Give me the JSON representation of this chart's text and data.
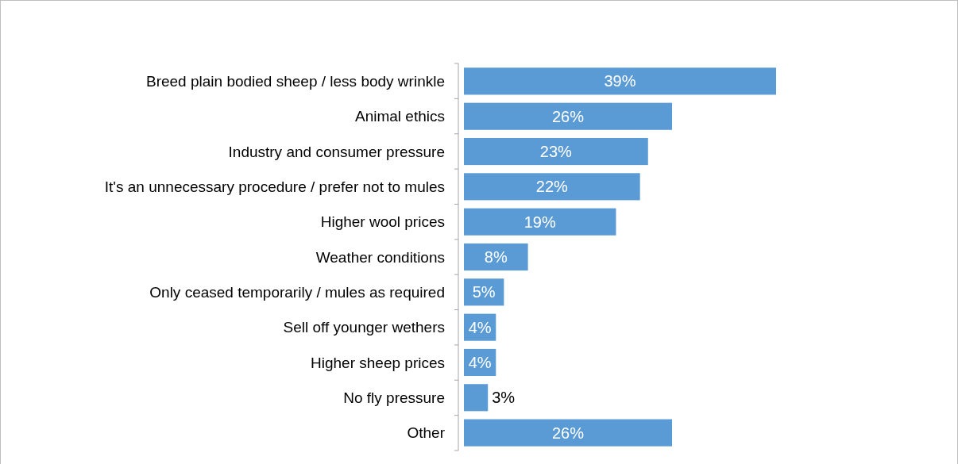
{
  "chart_data": {
    "type": "bar",
    "orientation": "horizontal",
    "categories": [
      "Breed plain bodied sheep / less body wrinkle",
      "Animal ethics",
      "Industry and consumer pressure",
      "It's an unnecessary procedure / prefer not to mules",
      "Higher wool prices",
      "Weather conditions",
      "Only ceased temporarily / mules as required",
      "Sell off younger wethers",
      "Higher sheep prices",
      "No fly pressure",
      "Other"
    ],
    "values": [
      39,
      26,
      23,
      22,
      19,
      8,
      5,
      4,
      4,
      3,
      26
    ],
    "value_labels": [
      "39%",
      "26%",
      "23%",
      "22%",
      "19%",
      "8%",
      "5%",
      "4%",
      "4%",
      "3%",
      "26%"
    ],
    "color": "#5b9bd5"
  }
}
